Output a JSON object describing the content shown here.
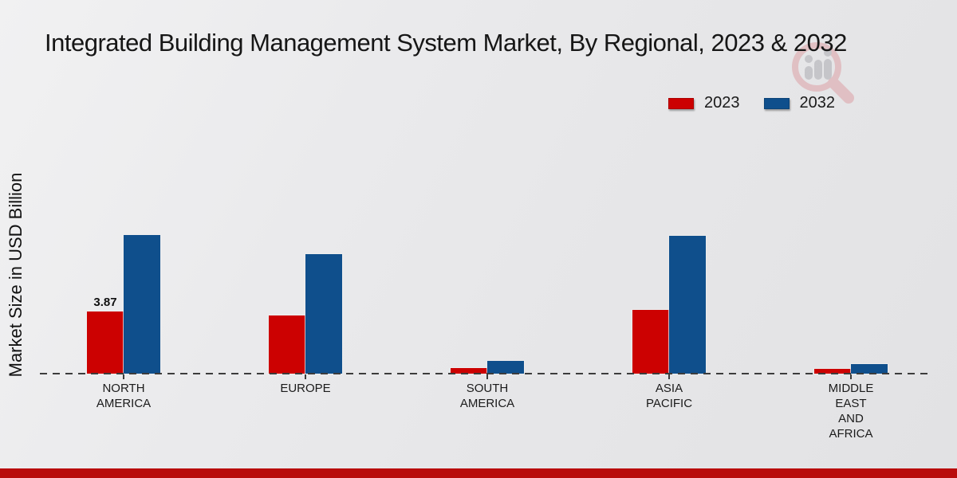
{
  "title": "Integrated Building Management System Market, By Regional, 2023 & 2032",
  "watermark_icon": "magnifier-bar-chart-logo",
  "footer": {
    "band_color": "#b90c0c"
  },
  "chart_data": {
    "type": "bar",
    "title": "Integrated Building Management System Market, By Regional, 2023 & 2032",
    "ylabel": "Market Size in USD Billion",
    "xlabel": "",
    "ylim": [
      0,
      9.5
    ],
    "grid": false,
    "legend_position": "top-right",
    "baseline_style": "dashed",
    "categories": [
      "NORTH AMERICA",
      "EUROPE",
      "SOUTH AMERICA",
      "ASIA PACIFIC",
      "MIDDLE EAST AND AFRICA"
    ],
    "category_lines": [
      [
        "NORTH",
        "AMERICA"
      ],
      [
        "EUROPE"
      ],
      [
        "SOUTH",
        "AMERICA"
      ],
      [
        "ASIA",
        "PACIFIC"
      ],
      [
        "MIDDLE",
        "EAST",
        "AND",
        "AFRICA"
      ]
    ],
    "series": [
      {
        "name": "2023",
        "color": "#cc0101",
        "values": [
          3.87,
          3.62,
          0.33,
          3.97,
          0.3
        ]
      },
      {
        "name": "2032",
        "color": "#0f4f8c",
        "values": [
          8.63,
          7.44,
          0.79,
          8.58,
          0.62
        ]
      }
    ],
    "annotations": [
      {
        "category": "NORTH AMERICA",
        "series": "2023",
        "text": "3.87"
      }
    ]
  }
}
